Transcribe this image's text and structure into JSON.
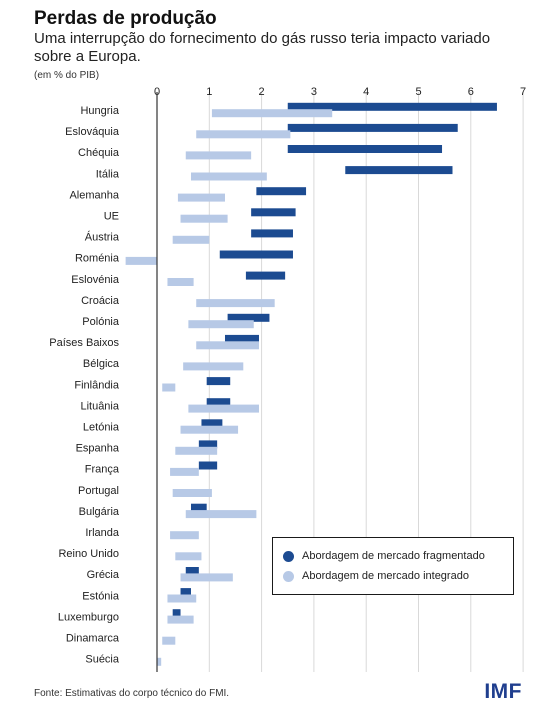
{
  "title": "Perdas de produção",
  "subtitle": "Uma interrupção do fornecimento do gás russo teria impacto variado sobre a Europa.",
  "unit_note": "(em % do PIB)",
  "source": "Fonte: Estimativas do corpo técnico do FMI.",
  "logo": "IMF",
  "colors": {
    "fragmented": "#1c4b91",
    "integrated": "#b7c9e6",
    "zero_line": "#333333",
    "grid": "#d9d9d9"
  },
  "legend": {
    "fragmented": "Abordagem de mercado fragmentado",
    "integrated": "Abordagem de mercado integrado"
  },
  "chart_data": {
    "type": "bar",
    "orientation": "horizontal",
    "style": "floating ranges",
    "x_ticks": [
      "0",
      "1",
      "2",
      "3",
      "4",
      "5",
      "6",
      "7"
    ],
    "xlim": [
      -0.6,
      7
    ],
    "grid": true,
    "legend_position": "bottom-right",
    "categories": [
      "Hungria",
      "Eslováquia",
      "Chéquia",
      "Itália",
      "Alemanha",
      "UE",
      "Áustria",
      "Roménia",
      "Eslovénia",
      "Croácia",
      "Polónia",
      "Países Baixos",
      "Bélgica",
      "Finlândia",
      "Lituânia",
      "Letónia",
      "Espanha",
      "França",
      "Portugal",
      "Bulgária",
      "Irlanda",
      "Reino Unido",
      "Grécia",
      "Estónia",
      "Luxemburgo",
      "Dinamarca",
      "Suécia"
    ],
    "series": [
      {
        "name": "Abordagem de mercado fragmentado",
        "key": "fragmented",
        "ranges": [
          [
            2.5,
            6.5
          ],
          [
            2.5,
            5.75
          ],
          [
            2.5,
            5.45
          ],
          [
            3.6,
            5.65
          ],
          [
            1.9,
            2.85
          ],
          [
            1.8,
            2.65
          ],
          [
            1.8,
            2.6
          ],
          [
            1.2,
            2.6
          ],
          [
            1.7,
            2.45
          ],
          null,
          [
            1.35,
            2.15
          ],
          [
            1.3,
            1.95
          ],
          null,
          [
            0.95,
            1.4
          ],
          [
            0.95,
            1.4
          ],
          [
            0.85,
            1.25
          ],
          [
            0.8,
            1.15
          ],
          [
            0.8,
            1.15
          ],
          null,
          [
            0.65,
            0.95
          ],
          null,
          null,
          [
            0.55,
            0.8
          ],
          [
            0.45,
            0.65
          ],
          [
            0.3,
            0.45
          ],
          null,
          null
        ]
      },
      {
        "name": "Abordagem de mercado integrado",
        "key": "integrated",
        "ranges": [
          [
            1.05,
            3.35
          ],
          [
            0.75,
            2.55
          ],
          [
            0.55,
            1.8
          ],
          [
            0.65,
            2.1
          ],
          [
            0.4,
            1.3
          ],
          [
            0.45,
            1.35
          ],
          [
            0.3,
            1.0
          ],
          [
            -0.6,
            0.0
          ],
          [
            0.2,
            0.7
          ],
          [
            0.75,
            2.25
          ],
          [
            0.6,
            1.85
          ],
          [
            0.75,
            1.95
          ],
          [
            0.5,
            1.65
          ],
          [
            0.1,
            0.35
          ],
          [
            0.6,
            1.95
          ],
          [
            0.45,
            1.55
          ],
          [
            0.35,
            1.15
          ],
          [
            0.25,
            0.8
          ],
          [
            0.3,
            1.05
          ],
          [
            0.55,
            1.9
          ],
          [
            0.25,
            0.8
          ],
          [
            0.35,
            0.85
          ],
          [
            0.45,
            1.45
          ],
          [
            0.2,
            0.75
          ],
          [
            0.2,
            0.7
          ],
          [
            0.1,
            0.35
          ],
          [
            0.0,
            0.08
          ]
        ]
      }
    ]
  }
}
